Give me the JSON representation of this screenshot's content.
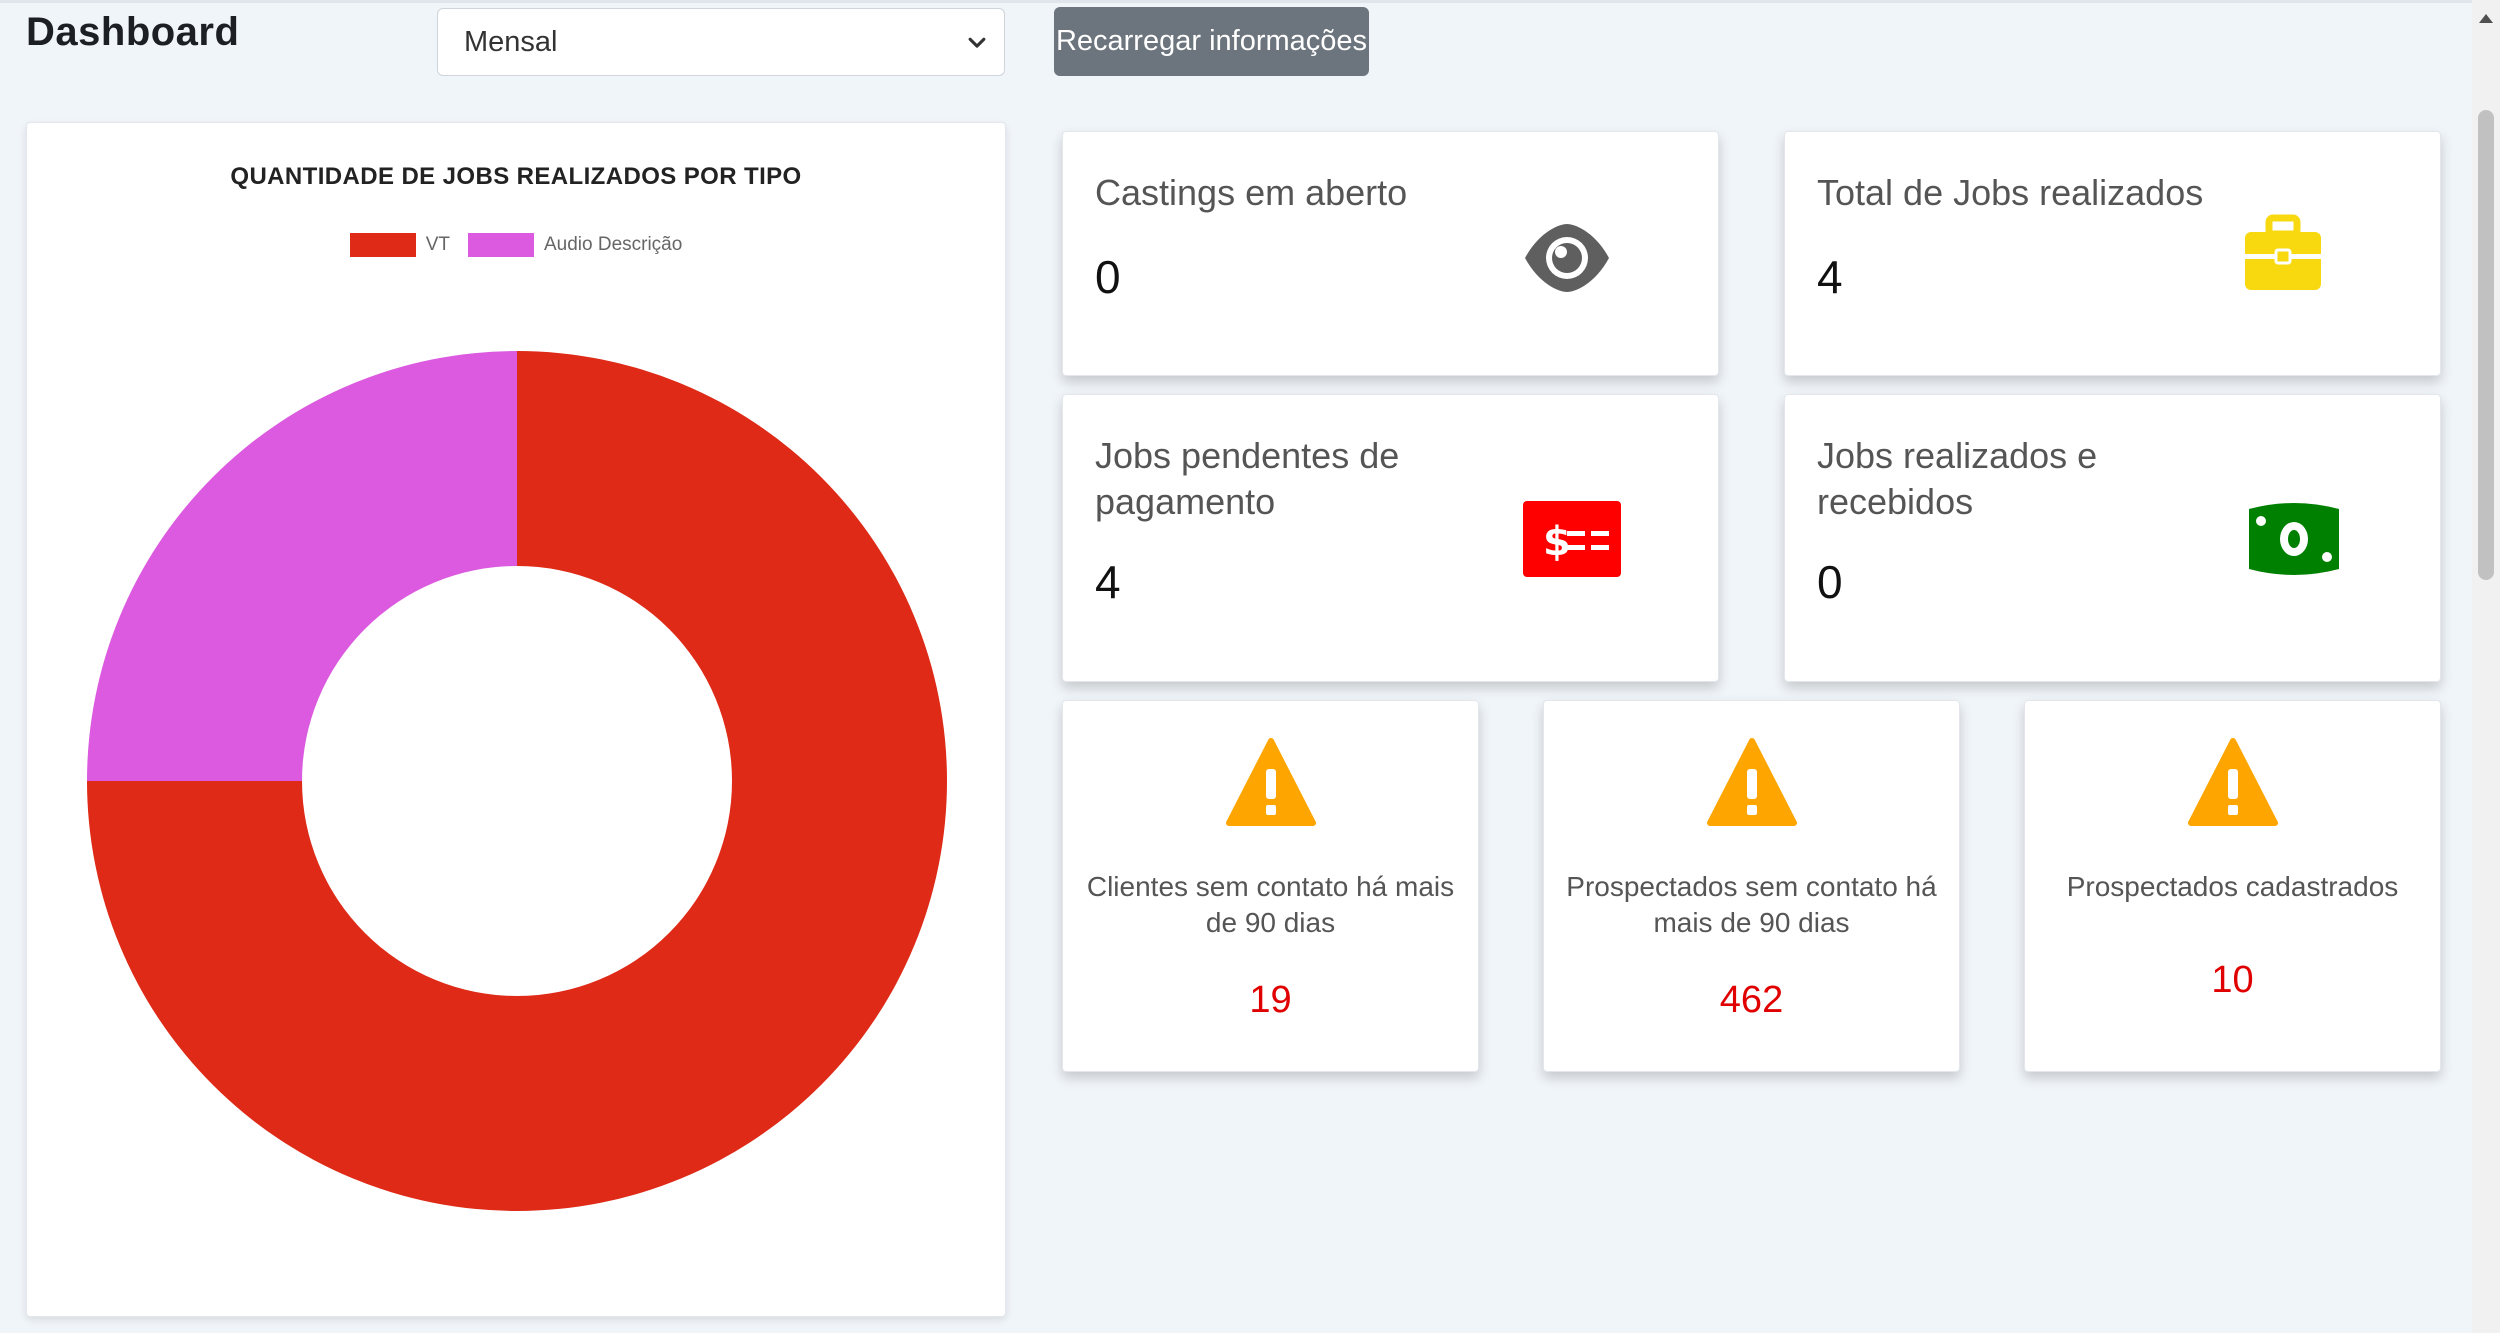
{
  "header": {
    "title": "Dashboard",
    "period_select_value": "Mensal",
    "reload_label": "Recarregar informações"
  },
  "chart_data": {
    "type": "pie",
    "title": "QUANTIDADE DE JOBS REALIZADOS POR TIPO",
    "categories": [
      "VT",
      "Audio Descrição"
    ],
    "values": [
      3,
      1
    ],
    "colors": [
      "#de2a17",
      "#db5adf"
    ],
    "donut": true,
    "legend_position": "top"
  },
  "stats": {
    "castings": {
      "title": "Castings em aberto",
      "value": "0",
      "icon": "eye-icon",
      "color": "#5f5f5f"
    },
    "total_jobs": {
      "title": "Total de Jobs realizados",
      "value": "4",
      "icon": "briefcase-icon",
      "color": "#f8d90f"
    },
    "pending_jobs": {
      "title_line1": "Jobs pendentes de",
      "title_line2": "pagamento",
      "value": "4",
      "icon": "check-money-icon",
      "color": "#ff0000"
    },
    "received_jobs": {
      "title_line1": "Jobs realizados e",
      "title_line2": "recebidos",
      "value": "0",
      "icon": "money-bill-icon",
      "color": "#008000"
    }
  },
  "alerts": [
    {
      "text_line1": "Clientes sem contato há mais",
      "text_line2": "de 90 dias",
      "value": "19",
      "icon": "warning-icon"
    },
    {
      "text_line1": "Prospectados sem contato há",
      "text_line2": "mais de 90 dias",
      "value": "462",
      "icon": "warning-icon"
    },
    {
      "text_line1": "Prospectados cadastrados",
      "text_line2": "",
      "value": "10",
      "icon": "warning-icon"
    }
  ],
  "alert_color": "#ffa500",
  "alert_value_color": "#e00000"
}
